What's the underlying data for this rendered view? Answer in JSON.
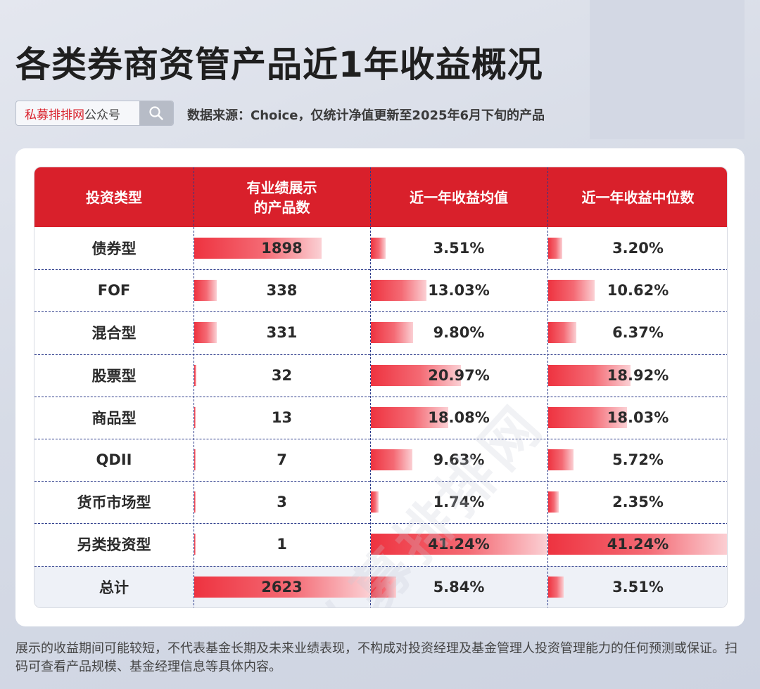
{
  "title": "各类券商资管产品近1年收益概况",
  "search": {
    "brand": "私募排排网",
    "suffix": "公众号",
    "icon": "search-icon"
  },
  "source": "数据来源：Choice，仅统计净值更新至2025年6月下旬的产品",
  "watermark": "私募排排网",
  "footer": "展示的收益期间可能较短，不代表基金长期及未来业绩表现，不构成对投资经理及基金管理人投资管理能力的任何预测或保证。扫码可查看产品规模、基金经理信息等具体内容。",
  "colors": {
    "header": "#d9202b",
    "bar": "#ee3340"
  },
  "chart_data": {
    "type": "table",
    "headers": [
      "投资类型",
      "有业绩展示\n的产品数",
      "近一年收益均值",
      "近一年收益中位数"
    ],
    "rows": [
      {
        "type": "债券型",
        "count": 1898,
        "count_label": "1898",
        "mean": 3.51,
        "mean_label": "3.51%",
        "median": 3.2,
        "median_label": "3.20%"
      },
      {
        "type": "FOF",
        "count": 338,
        "count_label": "338",
        "mean": 13.03,
        "mean_label": "13.03%",
        "median": 10.62,
        "median_label": "10.62%"
      },
      {
        "type": "混合型",
        "count": 331,
        "count_label": "331",
        "mean": 9.8,
        "mean_label": "9.80%",
        "median": 6.37,
        "median_label": "6.37%"
      },
      {
        "type": "股票型",
        "count": 32,
        "count_label": "32",
        "mean": 20.97,
        "mean_label": "20.97%",
        "median": 18.92,
        "median_label": "18.92%"
      },
      {
        "type": "商品型",
        "count": 13,
        "count_label": "13",
        "mean": 18.08,
        "mean_label": "18.08%",
        "median": 18.03,
        "median_label": "18.03%"
      },
      {
        "type": "QDII",
        "count": 7,
        "count_label": "7",
        "mean": 9.63,
        "mean_label": "9.63%",
        "median": 5.72,
        "median_label": "5.72%"
      },
      {
        "type": "货币市场型",
        "count": 3,
        "count_label": "3",
        "mean": 1.74,
        "mean_label": "1.74%",
        "median": 2.35,
        "median_label": "2.35%"
      },
      {
        "type": "另类投资型",
        "count": 1,
        "count_label": "1",
        "mean": 41.24,
        "mean_label": "41.24%",
        "median": 41.24,
        "median_label": "41.24%"
      },
      {
        "type": "总计",
        "count": 2623,
        "count_label": "2623",
        "mean": 5.84,
        "mean_label": "5.84%",
        "median": 3.51,
        "median_label": "3.51%"
      }
    ]
  }
}
